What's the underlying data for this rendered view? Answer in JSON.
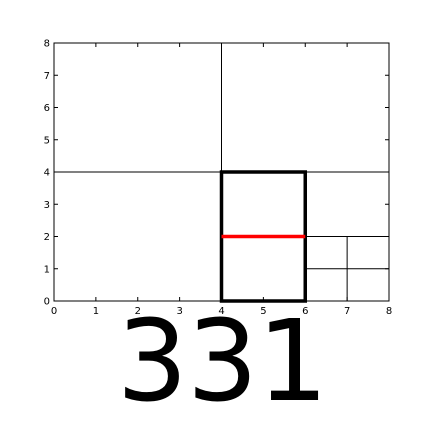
{
  "plot": {
    "x_ticks": [
      "0",
      "1",
      "2",
      "3",
      "4",
      "5",
      "6",
      "7",
      "8"
    ],
    "y_ticks": [
      "0",
      "1",
      "2",
      "3",
      "4",
      "5",
      "6",
      "7",
      "8"
    ],
    "xlim": [
      0,
      8
    ],
    "ylim": [
      0,
      8
    ],
    "grid": false,
    "line_color": "#000000",
    "highlight_color": "#ff0000",
    "thin_lines": [
      {
        "x": [
          4,
          4
        ],
        "y": [
          4,
          8
        ]
      },
      {
        "x": [
          0,
          8
        ],
        "y": [
          4,
          4
        ]
      },
      {
        "x": [
          6,
          8
        ],
        "y": [
          2,
          2
        ]
      },
      {
        "x": [
          6,
          8
        ],
        "y": [
          1,
          1
        ]
      },
      {
        "x": [
          7,
          7
        ],
        "y": [
          0,
          2
        ]
      }
    ],
    "bold_rectangle": {
      "x": [
        4,
        6
      ],
      "y": [
        0,
        4
      ]
    },
    "red_segment": {
      "x": [
        4,
        6
      ],
      "y": [
        2,
        2
      ]
    }
  },
  "caption": "331"
}
